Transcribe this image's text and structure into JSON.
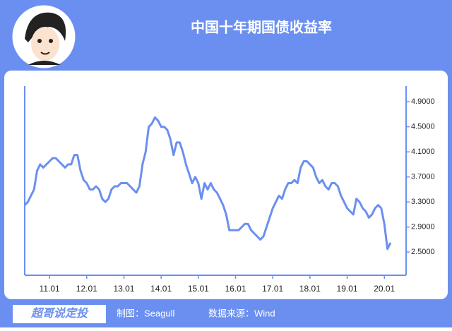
{
  "chart_data": {
    "type": "line",
    "title": "中国十年期国债收益率",
    "categories": [
      null,
      null,
      null,
      null,
      null,
      null,
      null,
      null,
      "11.01",
      null,
      null,
      null,
      null,
      null,
      null,
      null,
      null,
      null,
      null,
      null,
      "12.01",
      null,
      null,
      null,
      null,
      null,
      null,
      null,
      null,
      null,
      null,
      null,
      "13.01",
      null,
      null,
      null,
      null,
      null,
      null,
      null,
      null,
      null,
      null,
      null,
      "14.01",
      null,
      null,
      null,
      null,
      null,
      null,
      null,
      null,
      null,
      null,
      null,
      "15.01",
      null,
      null,
      null,
      null,
      null,
      null,
      null,
      null,
      null,
      null,
      null,
      "16.01",
      null,
      null,
      null,
      null,
      null,
      null,
      null,
      null,
      null,
      null,
      null,
      "17.01",
      null,
      null,
      null,
      null,
      null,
      null,
      null,
      null,
      null,
      null,
      null,
      "18.01",
      null,
      null,
      null,
      null,
      null,
      null,
      null,
      null,
      null,
      null,
      null,
      "19.01",
      null,
      null,
      null,
      null,
      null,
      null,
      null,
      null,
      null,
      null,
      null,
      "20.01",
      null,
      null
    ],
    "values": [
      3.25,
      3.3,
      3.4,
      3.5,
      3.8,
      3.9,
      3.85,
      3.9,
      3.95,
      4.0,
      4.0,
      3.95,
      3.9,
      3.85,
      3.9,
      3.9,
      4.05,
      4.05,
      3.8,
      3.65,
      3.6,
      3.5,
      3.5,
      3.55,
      3.5,
      3.35,
      3.3,
      3.35,
      3.5,
      3.55,
      3.55,
      3.6,
      3.6,
      3.6,
      3.55,
      3.5,
      3.45,
      3.55,
      3.9,
      4.1,
      4.5,
      4.55,
      4.65,
      4.6,
      4.5,
      4.5,
      4.45,
      4.3,
      4.05,
      4.25,
      4.25,
      4.1,
      3.9,
      3.75,
      3.6,
      3.7,
      3.6,
      3.35,
      3.6,
      3.5,
      3.6,
      3.5,
      3.45,
      3.35,
      3.25,
      3.1,
      2.85,
      2.85,
      2.85,
      2.85,
      2.9,
      2.95,
      2.95,
      2.85,
      2.8,
      2.75,
      2.7,
      2.75,
      2.9,
      3.05,
      3.2,
      3.3,
      3.4,
      3.35,
      3.5,
      3.6,
      3.6,
      3.65,
      3.6,
      3.85,
      3.95,
      3.95,
      3.9,
      3.85,
      3.7,
      3.6,
      3.65,
      3.55,
      3.5,
      3.6,
      3.6,
      3.55,
      3.4,
      3.3,
      3.2,
      3.15,
      3.1,
      3.35,
      3.3,
      3.2,
      3.15,
      3.05,
      3.1,
      3.2,
      3.25,
      3.2,
      2.95,
      2.55,
      2.65
    ],
    "color": "#6b8ff0",
    "ylim": [
      2.13,
      5.15
    ],
    "yticks": [
      {
        "value": 2.5,
        "label": "2.5000"
      },
      {
        "value": 2.9,
        "label": "2.9000"
      },
      {
        "value": 3.3,
        "label": "3.3000"
      },
      {
        "value": 3.7,
        "label": "3.7000"
      },
      {
        "value": 4.1,
        "label": "4.1000"
      },
      {
        "value": 4.5,
        "label": "4.5000"
      },
      {
        "value": 4.9,
        "label": "4.9000"
      }
    ]
  },
  "footer": {
    "brand": "超哥说定投",
    "author": "制图：Seagull",
    "source": "数据来源：Wind"
  }
}
